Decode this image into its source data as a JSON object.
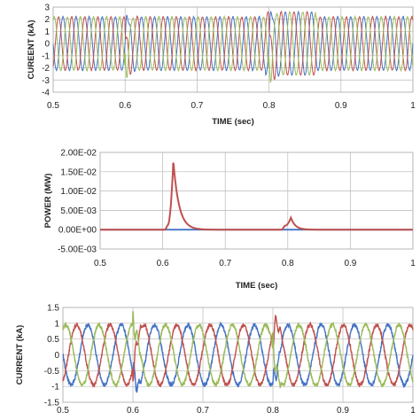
{
  "chart_data": [
    {
      "type": "line",
      "xlabel": "TIME (sec)",
      "ylabel": "CUREENT (kA)",
      "xlim": [
        0.5,
        1.0
      ],
      "ylim": [
        -4,
        3
      ],
      "x_ticks": [
        "0.5",
        "0.6",
        "0.7",
        "0.8",
        "0.9",
        "1"
      ],
      "y_ticks": [
        "3",
        "2",
        "1",
        "0",
        "-1",
        "-2",
        "-3",
        "-4"
      ],
      "grid": true,
      "series_colors": [
        "#4472c4",
        "#c0504d",
        "#9bbb59"
      ],
      "signal": {
        "kind": "three-phase sinusoid",
        "amplitude_kA": 2.2,
        "cycles_per_second": 55,
        "transient_at_s": [
          0.6,
          0.8
        ]
      }
    },
    {
      "type": "line",
      "xlabel": "TIME (sec)",
      "ylabel": "POWER (MW)",
      "xlim": [
        0.5,
        1.0
      ],
      "ylim": [
        -0.005,
        0.02
      ],
      "x_ticks": [
        "0.5",
        "0.6",
        "0.7",
        "0.8",
        "0.9",
        "1"
      ],
      "y_ticks": [
        "2.00E-02",
        "1.50E-02",
        "1.00E-02",
        "5.00E-03",
        "0.00E+00",
        "-5.00E-03"
      ],
      "grid": true,
      "series_colors": [
        "#c0504d",
        "#4472c4"
      ],
      "signal": {
        "peaks": [
          {
            "t": 0.617,
            "value": 0.0178
          },
          {
            "t": 0.805,
            "value": 0.0031
          }
        ],
        "small_rise": [
          {
            "t": 0.604,
            "value": 0.0012
          },
          {
            "t": 0.791,
            "value": 0.001
          }
        ]
      }
    },
    {
      "type": "line",
      "xlabel": "",
      "ylabel": "CURRENT (kA)",
      "xlim": [
        0.5,
        1.0
      ],
      "ylim": [
        -1.5,
        1.5
      ],
      "x_ticks": [
        "0.5",
        "0.6",
        "0.7",
        "0.8",
        "0.9",
        "1"
      ],
      "y_ticks": [
        "1.5",
        "1",
        "0.5",
        "0",
        "-0.5",
        "-1",
        "-1.5"
      ],
      "grid": true,
      "series_colors": [
        "#4472c4",
        "#c0504d",
        "#9bbb59"
      ],
      "signal": {
        "kind": "three-phase sinusoid",
        "amplitude_kA": 0.95,
        "cycles_per_second": 21,
        "transient_at_s": [
          0.6,
          0.8
        ]
      }
    }
  ]
}
